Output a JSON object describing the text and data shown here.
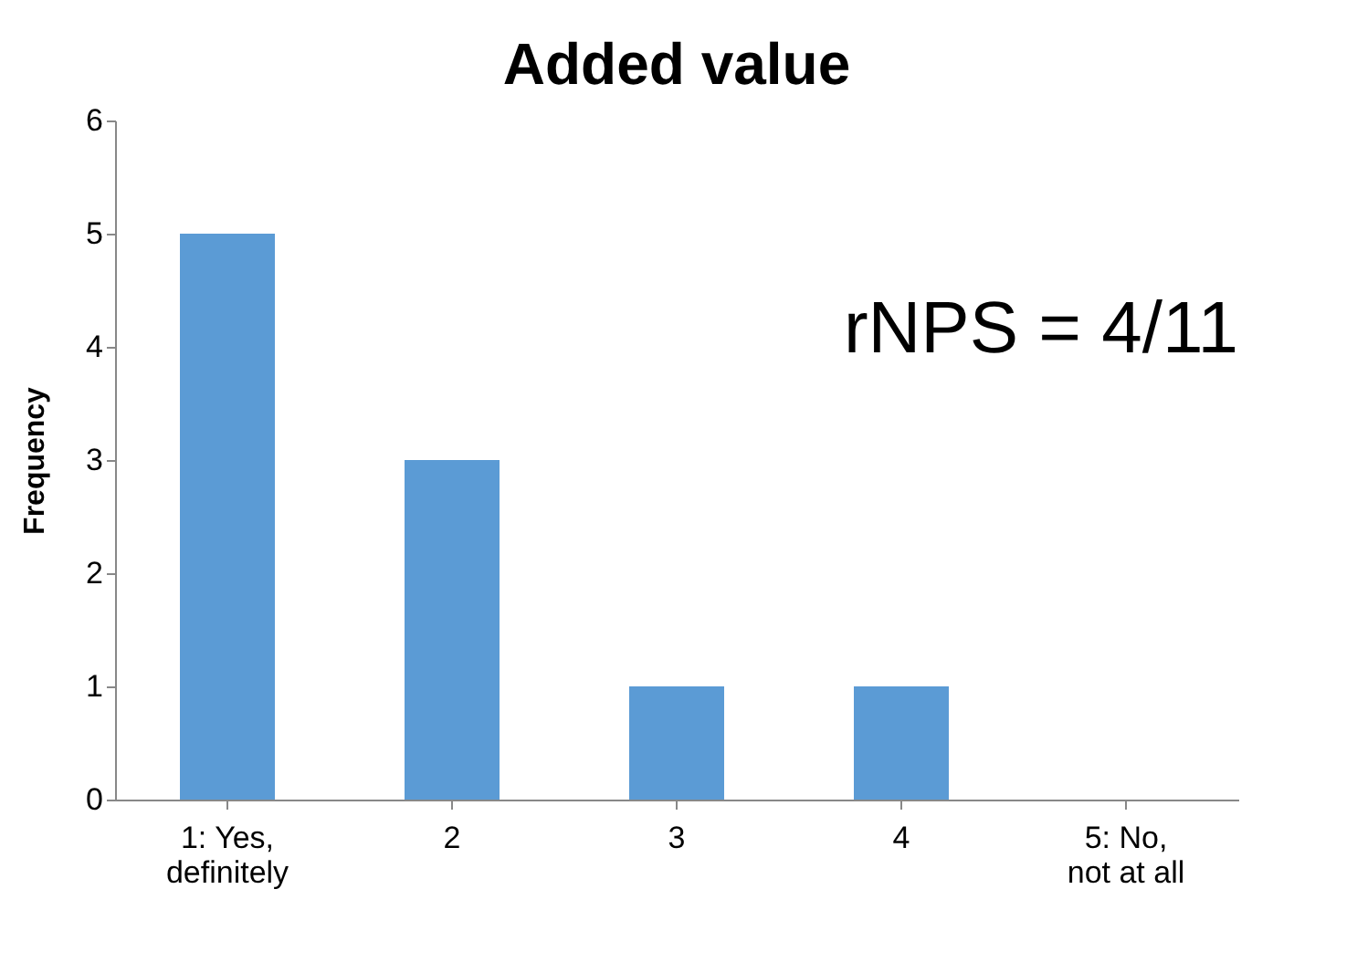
{
  "chart_data": {
    "type": "bar",
    "title": "Added value",
    "ylabel": "Frequency",
    "categories": [
      "1: Yes, definitely",
      "2",
      "3",
      "4",
      "5: No, not at all"
    ],
    "values": [
      5,
      3,
      1,
      1,
      0
    ],
    "color": "#5b9bd5",
    "ylim": [
      0,
      6
    ],
    "yticks": [
      0,
      1,
      2,
      3,
      4,
      5,
      6
    ],
    "grid": false,
    "annotations": [
      "rNPS = 4/11"
    ]
  }
}
